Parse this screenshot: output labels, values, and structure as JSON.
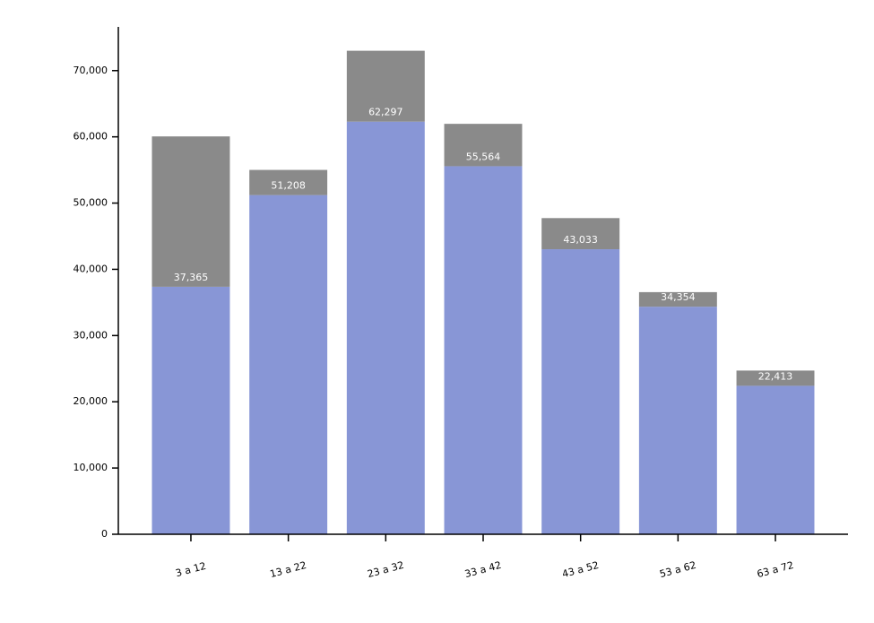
{
  "chart_data": {
    "type": "stacked-bar",
    "categories": [
      "3 a 12",
      "13 a 22",
      "23 a 32",
      "33 a 42",
      "43 a 52",
      "53 a 62",
      "63 a 72"
    ],
    "series": [
      {
        "color": "#8896d6",
        "values": [
          37365,
          51208,
          62297,
          55564,
          43033,
          34354,
          22413
        ],
        "value_labels": [
          "37,365",
          "51,208",
          "62,297",
          "55,564",
          "43,033",
          "34,354",
          "22,413"
        ]
      },
      {
        "color": "#8a8a8a",
        "values": [
          22700,
          3800,
          10700,
          6400,
          4700,
          2200,
          2300
        ]
      }
    ],
    "ylim": [
      0,
      76600
    ],
    "yticks": [
      0,
      {
        "value": 10000,
        "label": "10,000"
      },
      {
        "value": 20000,
        "label": "20,000"
      },
      {
        "value": 30000,
        "label": "30,000"
      },
      {
        "value": 40000,
        "label": "40,000"
      },
      {
        "value": 50000,
        "label": "50,000"
      },
      {
        "value": 60000,
        "label": "60,000"
      },
      {
        "value": 70000,
        "label": "70,000"
      }
    ]
  }
}
